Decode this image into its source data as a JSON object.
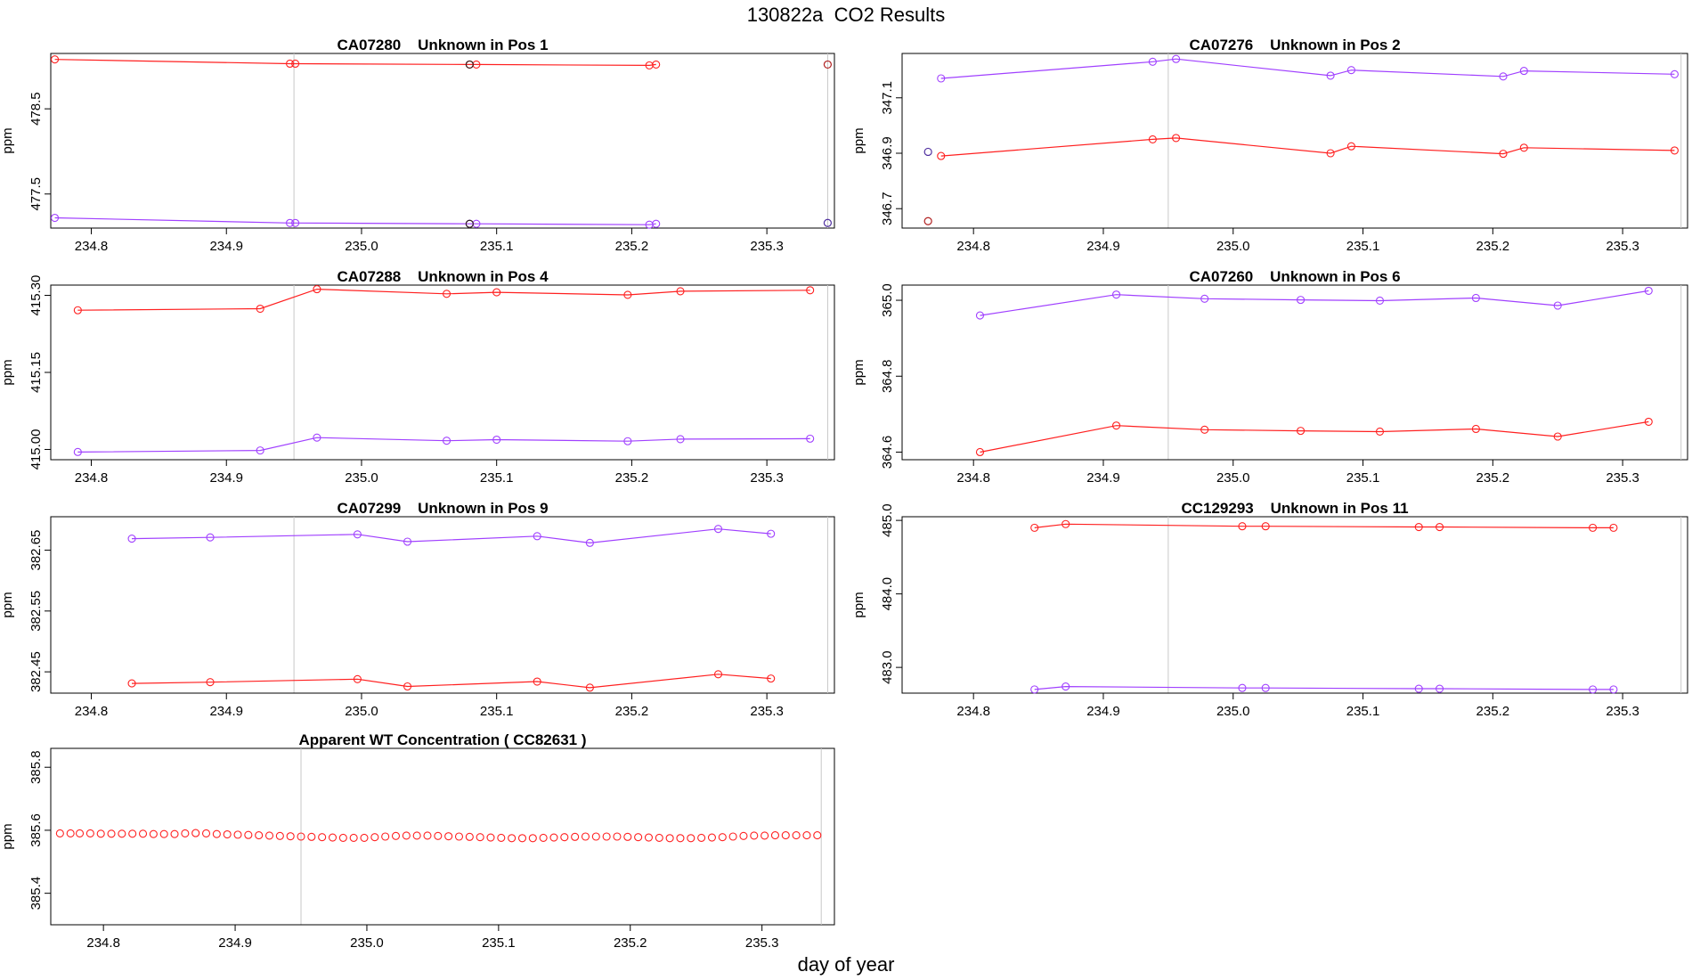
{
  "title": "130822a  CO2 Results",
  "xlabel": "day of year",
  "colors": {
    "reference": "#ff2020",
    "measured": "#a040ff",
    "flag": "#302020",
    "divider": "#c8c8c8"
  },
  "chart_data": [
    {
      "type": "line",
      "title": "CA07280    Unknown in Pos 1",
      "ylabel": "ppm",
      "xlim": [
        234.77,
        235.35
      ],
      "ylim": [
        477.1,
        479.15
      ],
      "xticks": [
        234.8,
        234.9,
        235.0,
        235.1,
        235.2,
        235.3
      ],
      "xtick_labels": [
        "234.8",
        "234.9",
        "235.0",
        "235.1",
        "235.2",
        "235.3"
      ],
      "yticks": [
        477.5,
        478.5
      ],
      "ytick_labels": [
        "477.5",
        "478.5"
      ],
      "vlines": [
        234.95,
        235.345
      ],
      "series": [
        {
          "name": "red",
          "color": "#ff2020",
          "x": [
            234.773,
            234.947,
            234.951,
            235.08,
            235.085,
            235.213,
            235.218
          ],
          "y": [
            479.08,
            479.03,
            479.03,
            479.02,
            479.02,
            479.01,
            479.02
          ]
        },
        {
          "name": "purple",
          "color": "#a040ff",
          "x": [
            234.773,
            234.947,
            234.951,
            235.08,
            235.085,
            235.213,
            235.218
          ],
          "y": [
            477.22,
            477.16,
            477.16,
            477.15,
            477.15,
            477.14,
            477.15
          ]
        }
      ],
      "points": [
        {
          "x": 235.08,
          "y": 479.02,
          "color": "#302020"
        },
        {
          "x": 235.08,
          "y": 477.15,
          "color": "#302020"
        },
        {
          "x": 235.345,
          "y": 479.02,
          "color": "#b02020"
        },
        {
          "x": 235.345,
          "y": 477.16,
          "color": "#5030a0"
        }
      ]
    },
    {
      "type": "line",
      "title": "CA07276    Unknown in Pos 2",
      "ylabel": "ppm",
      "xlim": [
        234.745,
        235.35
      ],
      "ylim": [
        346.63,
        347.26
      ],
      "xticks": [
        234.8,
        234.9,
        235.0,
        235.1,
        235.2,
        235.3
      ],
      "xtick_labels": [
        "234.8",
        "234.9",
        "235.0",
        "235.1",
        "235.2",
        "235.3"
      ],
      "yticks": [
        346.7,
        346.9,
        347.1
      ],
      "ytick_labels": [
        "346.7",
        "346.9",
        "347.1"
      ],
      "vlines": [
        234.95,
        235.345
      ],
      "series": [
        {
          "name": "red",
          "color": "#ff2020",
          "x": [
            234.775,
            234.938,
            234.956,
            235.075,
            235.091,
            235.208,
            235.224,
            235.34
          ],
          "y": [
            346.89,
            346.95,
            346.955,
            346.9,
            346.925,
            346.898,
            346.92,
            346.91
          ]
        },
        {
          "name": "purple",
          "color": "#a040ff",
          "x": [
            234.775,
            234.938,
            234.956,
            235.075,
            235.091,
            235.208,
            235.224,
            235.34
          ],
          "y": [
            347.17,
            347.23,
            347.24,
            347.18,
            347.2,
            347.177,
            347.197,
            347.185
          ]
        }
      ],
      "points": [
        {
          "x": 234.765,
          "y": 346.905,
          "color": "#5030a0"
        },
        {
          "x": 234.765,
          "y": 346.655,
          "color": "#b02020"
        }
      ]
    },
    {
      "type": "line",
      "title": "CA07288    Unknown in Pos 4",
      "ylabel": "ppm",
      "xlim": [
        234.77,
        235.35
      ],
      "ylim": [
        414.98,
        415.32
      ],
      "xticks": [
        234.8,
        234.9,
        235.0,
        235.1,
        235.2,
        235.3
      ],
      "xtick_labels": [
        "234.8",
        "234.9",
        "235.0",
        "235.1",
        "235.2",
        "235.3"
      ],
      "yticks": [
        415.0,
        415.15,
        415.3
      ],
      "ytick_labels": [
        "415.00",
        "415.15",
        "415.30"
      ],
      "vlines": [
        234.95,
        235.345
      ],
      "series": [
        {
          "name": "red",
          "color": "#ff2020",
          "x": [
            234.79,
            234.925,
            234.967,
            235.063,
            235.1,
            235.197,
            235.236,
            235.332
          ],
          "y": [
            415.271,
            415.274,
            415.312,
            415.303,
            415.306,
            415.301,
            415.308,
            415.31
          ]
        },
        {
          "name": "purple",
          "color": "#a040ff",
          "x": [
            234.79,
            234.925,
            234.967,
            235.063,
            235.1,
            235.197,
            235.236,
            235.332
          ],
          "y": [
            414.995,
            414.998,
            415.023,
            415.017,
            415.019,
            415.016,
            415.02,
            415.021
          ]
        }
      ],
      "points": []
    },
    {
      "type": "line",
      "title": "CA07260    Unknown in Pos 6",
      "ylabel": "ppm",
      "xlim": [
        234.745,
        235.35
      ],
      "ylim": [
        364.58,
        365.04
      ],
      "xticks": [
        234.8,
        234.9,
        235.0,
        235.1,
        235.2,
        235.3
      ],
      "xtick_labels": [
        "234.8",
        "234.9",
        "235.0",
        "235.1",
        "235.2",
        "235.3"
      ],
      "yticks": [
        364.6,
        364.8,
        365.0
      ],
      "ytick_labels": [
        "364.6",
        "364.8",
        "365.0"
      ],
      "vlines": [
        234.95,
        235.345
      ],
      "series": [
        {
          "name": "red",
          "color": "#ff2020",
          "x": [
            234.805,
            234.91,
            234.978,
            235.052,
            235.113,
            235.187,
            235.25,
            235.32
          ],
          "y": [
            364.6,
            364.67,
            364.659,
            364.656,
            364.654,
            364.661,
            364.641,
            364.68
          ]
        },
        {
          "name": "purple",
          "color": "#a040ff",
          "x": [
            234.805,
            234.91,
            234.978,
            235.052,
            235.113,
            235.187,
            235.25,
            235.32
          ],
          "y": [
            364.96,
            365.015,
            365.004,
            365.001,
            364.999,
            365.006,
            364.986,
            365.025
          ]
        }
      ],
      "points": []
    },
    {
      "type": "line",
      "title": "CA07299    Unknown in Pos 9",
      "ylabel": "ppm",
      "xlim": [
        234.77,
        235.35
      ],
      "ylim": [
        382.415,
        382.705
      ],
      "xticks": [
        234.8,
        234.9,
        235.0,
        235.1,
        235.2,
        235.3
      ],
      "xtick_labels": [
        "234.8",
        "234.9",
        "235.0",
        "235.1",
        "235.2",
        "235.3"
      ],
      "yticks": [
        382.45,
        382.55,
        382.65
      ],
      "ytick_labels": [
        "382.45",
        "382.55",
        "382.65"
      ],
      "vlines": [
        234.95,
        235.345
      ],
      "series": [
        {
          "name": "red",
          "color": "#ff2020",
          "x": [
            234.83,
            234.888,
            234.997,
            235.034,
            235.13,
            235.169,
            235.264,
            235.303
          ],
          "y": [
            382.431,
            382.433,
            382.438,
            382.426,
            382.434,
            382.424,
            382.446,
            382.439
          ]
        },
        {
          "name": "purple",
          "color": "#a040ff",
          "x": [
            234.83,
            234.888,
            234.997,
            235.034,
            235.13,
            235.169,
            235.264,
            235.303
          ],
          "y": [
            382.669,
            382.671,
            382.676,
            382.664,
            382.673,
            382.662,
            382.685,
            382.677
          ]
        }
      ],
      "points": []
    },
    {
      "type": "line",
      "title": "CC129293    Unknown in Pos 11",
      "ylabel": "ppm",
      "xlim": [
        234.745,
        235.35
      ],
      "ylim": [
        482.65,
        485.05
      ],
      "xticks": [
        234.8,
        234.9,
        235.0,
        235.1,
        235.2,
        235.3
      ],
      "xtick_labels": [
        "234.8",
        "234.9",
        "235.0",
        "235.1",
        "235.2",
        "235.3"
      ],
      "yticks": [
        483.0,
        484.0,
        485.0
      ],
      "ytick_labels": [
        "483.0",
        "484.0",
        "485.0"
      ],
      "vlines": [
        234.95,
        235.345
      ],
      "series": [
        {
          "name": "red",
          "color": "#ff2020",
          "x": [
            234.847,
            234.871,
            235.007,
            235.025,
            235.143,
            235.159,
            235.277,
            235.293
          ],
          "y": [
            484.9,
            484.95,
            484.92,
            484.92,
            484.91,
            484.91,
            484.9,
            484.9
          ]
        },
        {
          "name": "purple",
          "color": "#a040ff",
          "x": [
            234.847,
            234.871,
            235.007,
            235.025,
            235.143,
            235.159,
            235.277,
            235.293
          ],
          "y": [
            482.7,
            482.74,
            482.72,
            482.72,
            482.71,
            482.71,
            482.7,
            482.7
          ]
        }
      ],
      "points": []
    },
    {
      "type": "scatter",
      "title": "Apparent WT Concentration ( CC82631 )",
      "ylabel": "ppm",
      "xlim": [
        234.76,
        235.355
      ],
      "ylim": [
        385.3,
        385.86
      ],
      "xticks": [
        234.8,
        234.9,
        235.0,
        235.1,
        235.2,
        235.3
      ],
      "xtick_labels": [
        "234.8",
        "234.9",
        "235.0",
        "235.1",
        "235.2",
        "235.3"
      ],
      "yticks": [
        385.4,
        385.6,
        385.8
      ],
      "ytick_labels": [
        "385.4",
        "385.6",
        "385.8"
      ],
      "vlines": [
        234.95,
        235.345
      ],
      "series": [
        {
          "name": "red",
          "color": "#ff2020",
          "line": false,
          "x": [
            234.767,
            234.775,
            234.782,
            234.79,
            234.798,
            234.806,
            234.814,
            234.822,
            234.83,
            234.838,
            234.846,
            234.854,
            234.862,
            234.87,
            234.878,
            234.886,
            234.894,
            234.902,
            234.91,
            234.918,
            234.926,
            234.934,
            234.942,
            234.95,
            234.958,
            234.966,
            234.974,
            234.982,
            234.99,
            234.998,
            235.006,
            235.014,
            235.022,
            235.03,
            235.038,
            235.046,
            235.054,
            235.062,
            235.07,
            235.078,
            235.086,
            235.094,
            235.102,
            235.11,
            235.118,
            235.126,
            235.134,
            235.142,
            235.15,
            235.158,
            235.166,
            235.174,
            235.182,
            235.19,
            235.198,
            235.206,
            235.214,
            235.222,
            235.23,
            235.238,
            235.246,
            235.254,
            235.262,
            235.27,
            235.278,
            235.286,
            235.294,
            235.302,
            235.31,
            235.318,
            235.326,
            235.334,
            235.342
          ],
          "y": [
            385.59,
            385.59,
            385.59,
            385.59,
            385.589,
            385.589,
            385.589,
            385.589,
            385.589,
            385.588,
            385.588,
            385.588,
            385.59,
            385.591,
            385.59,
            385.588,
            385.587,
            385.586,
            385.585,
            385.584,
            385.583,
            385.582,
            385.581,
            385.58,
            385.579,
            385.578,
            385.577,
            385.576,
            385.576,
            385.576,
            385.578,
            385.58,
            385.582,
            385.583,
            385.583,
            385.583,
            385.582,
            385.581,
            385.58,
            385.579,
            385.578,
            385.577,
            385.576,
            385.575,
            385.575,
            385.575,
            385.576,
            385.577,
            385.578,
            385.579,
            385.58,
            385.58,
            385.58,
            385.58,
            385.579,
            385.578,
            385.577,
            385.576,
            385.575,
            385.575,
            385.575,
            385.576,
            385.577,
            385.578,
            385.58,
            385.582,
            385.583,
            385.583,
            385.584,
            385.584,
            385.584,
            385.584,
            385.584
          ]
        }
      ],
      "points": []
    }
  ]
}
